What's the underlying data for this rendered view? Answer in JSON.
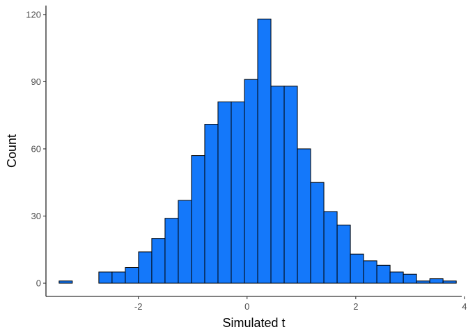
{
  "chart_data": {
    "type": "bar",
    "subtype": "histogram",
    "title": "",
    "xlabel": "Simulated t",
    "ylabel": "Count",
    "bin_width": 0.2436,
    "bins_start": -3.4583,
    "counts": [
      1,
      0,
      0,
      5,
      5,
      7,
      14,
      20,
      29,
      37,
      57,
      71,
      81,
      81,
      91,
      118,
      88,
      88,
      60,
      45,
      32,
      26,
      13,
      10,
      8,
      5,
      4,
      1,
      2,
      1
    ],
    "xlim": [
      -3.7,
      3.95
    ],
    "ylim": [
      -5.9,
      124
    ],
    "x_ticks": [
      {
        "value": -2,
        "label": "-2"
      },
      {
        "value": 0,
        "label": "0"
      },
      {
        "value": 2,
        "label": "2"
      },
      {
        "value": 4,
        "label": "4"
      }
    ],
    "y_ticks": [
      {
        "value": 0,
        "label": "0"
      },
      {
        "value": 30,
        "label": "30"
      },
      {
        "value": 60,
        "label": "60"
      },
      {
        "value": 90,
        "label": "90"
      },
      {
        "value": 120,
        "label": "120"
      }
    ],
    "grid": false,
    "legend": "none",
    "colors": {
      "fill": "#1478FA",
      "stroke": "#000000"
    }
  }
}
